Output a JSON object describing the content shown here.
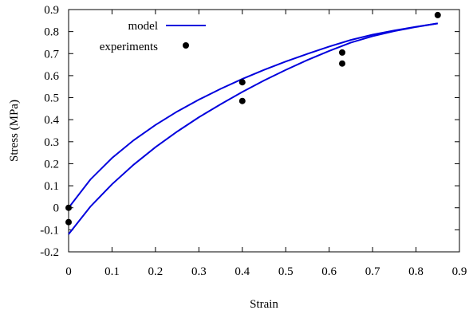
{
  "chart_data": {
    "type": "line",
    "xlabel": "Strain",
    "ylabel": "Stress (MPa)",
    "xlim": [
      0,
      0.9
    ],
    "ylim": [
      -0.2,
      0.9
    ],
    "xticks": [
      0,
      0.1,
      0.2,
      0.3,
      0.4,
      0.5,
      0.6,
      0.7,
      0.8,
      0.9
    ],
    "yticks": [
      -0.2,
      -0.1,
      0,
      0.1,
      0.2,
      0.3,
      0.4,
      0.5,
      0.6,
      0.7,
      0.8,
      0.9
    ],
    "xtick_labels": [
      "0",
      "0.1",
      "0.2",
      "0.3",
      "0.4",
      "0.5",
      "0.6",
      "0.7",
      "0.8",
      "0.9"
    ],
    "ytick_labels": [
      "-0.2",
      "-0.1",
      "0",
      "0.1",
      "0.2",
      "0.3",
      "0.4",
      "0.5",
      "0.6",
      "0.7",
      "0.8",
      "0.9"
    ],
    "grid": false,
    "legend": {
      "placement": "top-left"
    },
    "series": [
      {
        "name": "model",
        "style": "line",
        "color": "#0000dd",
        "branches": [
          {
            "x": [
              0,
              0.05,
              0.1,
              0.15,
              0.2,
              0.25,
              0.3,
              0.35,
              0.4,
              0.45,
              0.5,
              0.55,
              0.6,
              0.65,
              0.7,
              0.75,
              0.8,
              0.85
            ],
            "y": [
              0.0,
              0.128,
              0.226,
              0.307,
              0.376,
              0.437,
              0.491,
              0.54,
              0.585,
              0.626,
              0.664,
              0.699,
              0.732,
              0.762,
              0.786,
              0.805,
              0.822,
              0.837
            ]
          },
          {
            "x": [
              0,
              0.05,
              0.1,
              0.15,
              0.2,
              0.25,
              0.3,
              0.35,
              0.4,
              0.45,
              0.5,
              0.55,
              0.6,
              0.65,
              0.7,
              0.75,
              0.8,
              0.85
            ],
            "y": [
              -0.12,
              0.005,
              0.107,
              0.196,
              0.275,
              0.346,
              0.411,
              0.47,
              0.526,
              0.578,
              0.626,
              0.671,
              0.712,
              0.75,
              0.779,
              0.802,
              0.821,
              0.837
            ]
          }
        ]
      },
      {
        "name": "experiments",
        "style": "points",
        "color": "#000000",
        "x": [
          0,
          0,
          0.4,
          0.4,
          0.63,
          0.63,
          0.85
        ],
        "y": [
          0.0,
          -0.065,
          0.57,
          0.485,
          0.705,
          0.655,
          0.875
        ]
      }
    ]
  }
}
